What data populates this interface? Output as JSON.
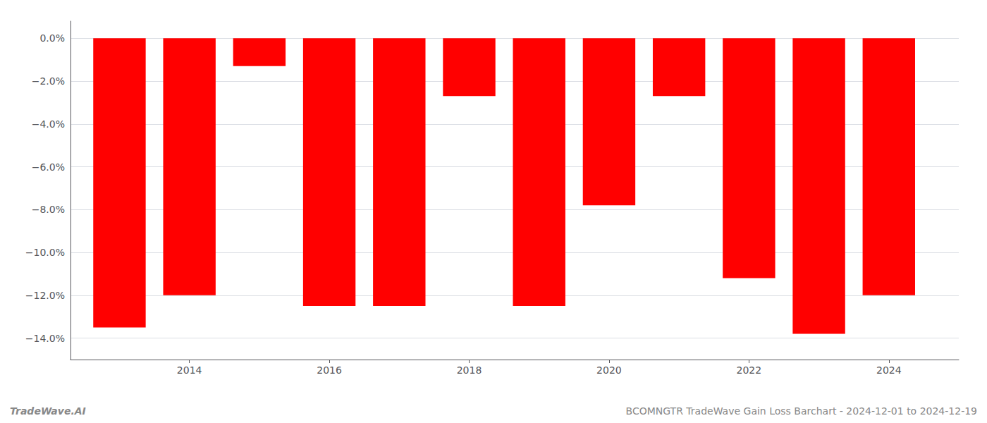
{
  "chart_data": {
    "type": "bar",
    "x": [
      2013,
      2014,
      2015,
      2016,
      2017,
      2018,
      2019,
      2020,
      2021,
      2022,
      2023,
      2024
    ],
    "values": [
      -13.5,
      -12.0,
      -1.3,
      -12.5,
      -12.5,
      -2.7,
      -12.5,
      -7.8,
      -2.7,
      -11.2,
      -13.8,
      -12.0
    ],
    "color": "#ff0000",
    "xlim": [
      2012.3,
      2025.0
    ],
    "xticks": [
      2014,
      2016,
      2018,
      2020,
      2022,
      2024
    ],
    "ylim": [
      -15.0,
      0.8
    ],
    "yticks": [
      {
        "value": 0.0,
        "label": "0.0%"
      },
      {
        "value": -2.0,
        "label": "−2.0%"
      },
      {
        "value": -4.0,
        "label": "−4.0%"
      },
      {
        "value": -6.0,
        "label": "−6.0%"
      },
      {
        "value": -8.0,
        "label": "−8.0%"
      },
      {
        "value": -10.0,
        "label": "−10.0%"
      },
      {
        "value": -12.0,
        "label": "−12.0%"
      },
      {
        "value": -14.0,
        "label": "−14.0%"
      }
    ],
    "grid": true,
    "annotations": [
      "TradeWave.AI",
      "BCOMNGTR TradeWave Gain Loss Barchart - 2024-12-01 to 2024-12-19"
    ]
  }
}
